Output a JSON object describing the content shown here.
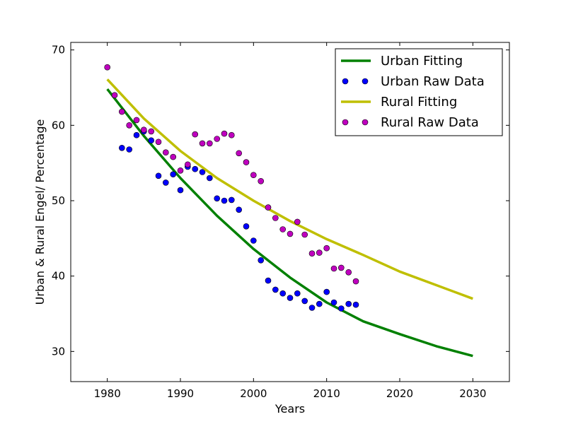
{
  "chart_data": {
    "type": "scatter",
    "xlabel": "Years",
    "ylabel": "Urban & Rural Engel/ Percentage",
    "xlim": [
      1975,
      2035
    ],
    "ylim": [
      26,
      71
    ],
    "xticks": [
      1980,
      1990,
      2000,
      2010,
      2020,
      2030
    ],
    "yticks": [
      30,
      40,
      50,
      60,
      70
    ],
    "grid": false,
    "legend_position": "top-right",
    "series": [
      {
        "name": "Urban Fitting",
        "kind": "line",
        "color": "#008000",
        "x": [
          1980,
          1985,
          1990,
          1995,
          2000,
          2005,
          2010,
          2015,
          2020,
          2025,
          2030
        ],
        "y": [
          64.8,
          58.6,
          53.0,
          48.0,
          43.6,
          39.8,
          36.5,
          34.0,
          32.3,
          30.7,
          29.4
        ]
      },
      {
        "name": "Urban Raw Data",
        "kind": "points",
        "color": "#0000ff",
        "x": [
          1982,
          1983,
          1984,
          1985,
          1986,
          1987,
          1988,
          1989,
          1990,
          1991,
          1992,
          1993,
          1994,
          1995,
          1996,
          1997,
          1998,
          1999,
          2000,
          2001,
          2002,
          2003,
          2004,
          2005,
          2006,
          2007,
          2008,
          2009,
          2010,
          2011,
          2012,
          2013,
          2014
        ],
        "y": [
          57.0,
          56.8,
          58.7,
          59.2,
          58.0,
          53.3,
          52.4,
          53.5,
          51.4,
          54.5,
          54.2,
          53.8,
          53.0,
          50.3,
          50.0,
          50.1,
          48.8,
          46.6,
          44.7,
          42.1,
          39.4,
          38.2,
          37.7,
          37.1,
          37.7,
          36.7,
          35.8,
          36.3,
          37.9,
          36.5,
          35.7,
          36.3,
          36.2
        ]
      },
      {
        "name": "Rural Fitting",
        "kind": "line",
        "color": "#bfbf00",
        "x": [
          1980,
          1985,
          1990,
          1995,
          2000,
          2005,
          2010,
          2015,
          2020,
          2025,
          2030
        ],
        "y": [
          66.1,
          60.9,
          56.6,
          53.0,
          50.0,
          47.3,
          44.9,
          42.8,
          40.6,
          38.8,
          37.0
        ]
      },
      {
        "name": "Rural Raw Data",
        "kind": "points",
        "color": "#bf00bf",
        "x": [
          1980,
          1981,
          1982,
          1983,
          1984,
          1985,
          1986,
          1987,
          1988,
          1989,
          1990,
          1991,
          1992,
          1993,
          1994,
          1995,
          1996,
          1997,
          1998,
          1999,
          2000,
          2001,
          2002,
          2003,
          2004,
          2005,
          2006,
          2007,
          2008,
          2009,
          2010,
          2011,
          2012,
          2013,
          2014
        ],
        "y": [
          67.7,
          64.0,
          61.8,
          60.0,
          60.7,
          59.4,
          59.2,
          57.8,
          56.4,
          55.8,
          54.0,
          54.8,
          58.8,
          57.6,
          57.6,
          58.2,
          58.9,
          58.7,
          56.3,
          55.1,
          53.4,
          52.6,
          49.1,
          47.7,
          46.2,
          45.6,
          47.2,
          45.5,
          43.0,
          43.1,
          43.7,
          41.0,
          41.1,
          40.5,
          39.3
        ]
      }
    ]
  }
}
